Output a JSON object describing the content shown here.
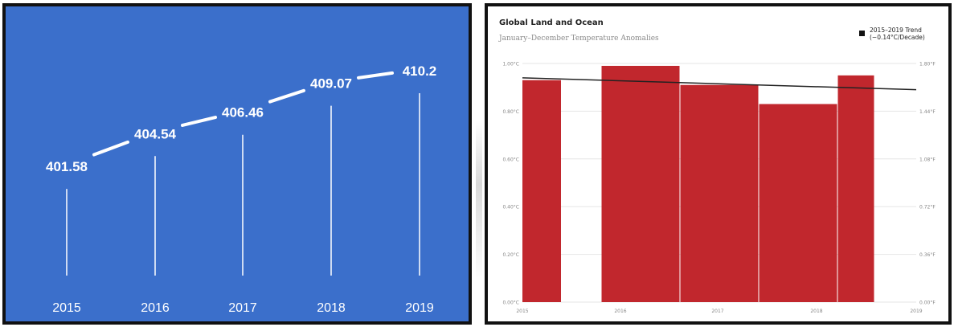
{
  "chart_data": [
    {
      "type": "line",
      "x": [
        "2015",
        "2016",
        "2017",
        "2018",
        "2019"
      ],
      "values": [
        401.58,
        404.54,
        406.46,
        409.07,
        410.2
      ],
      "data_labels": [
        "401.58",
        "404.54",
        "406.46",
        "409.07",
        "410.2"
      ],
      "title": "",
      "xlabel": "",
      "ylabel": "",
      "ylim": [
        400,
        411
      ],
      "grid": false,
      "colors": {
        "background": "#3b6fcb",
        "line": "#ffffff",
        "text": "#ffffff"
      }
    },
    {
      "type": "bar",
      "title": "Global Land and Ocean",
      "subtitle": "January–December Temperature Anomalies",
      "categories": [
        "2015",
        "2016",
        "2017",
        "2018",
        "2019"
      ],
      "values": [
        0.93,
        0.99,
        0.91,
        0.83,
        0.95
      ],
      "ylim": [
        0,
        1.0
      ],
      "y_ticks": [
        "0.00°C",
        "0.20°C",
        "0.40°C",
        "0.60°C",
        "0.80°C",
        "1.00°C"
      ],
      "y2_ticks": [
        "0.00°F",
        "0.36°F",
        "0.72°F",
        "1.08°F",
        "1.44°F",
        "1.80°F"
      ],
      "trend": {
        "label_line1": "2015–2019 Trend",
        "label_line2": "(−0.14°C/Decade)",
        "start": 0.94,
        "end": 0.89
      },
      "legend_position": "top-right",
      "grid": true,
      "colors": {
        "bar": "#c1272d",
        "trend": "#222222",
        "axis_text": "#888888",
        "grid": "#e6e6e6"
      }
    }
  ]
}
